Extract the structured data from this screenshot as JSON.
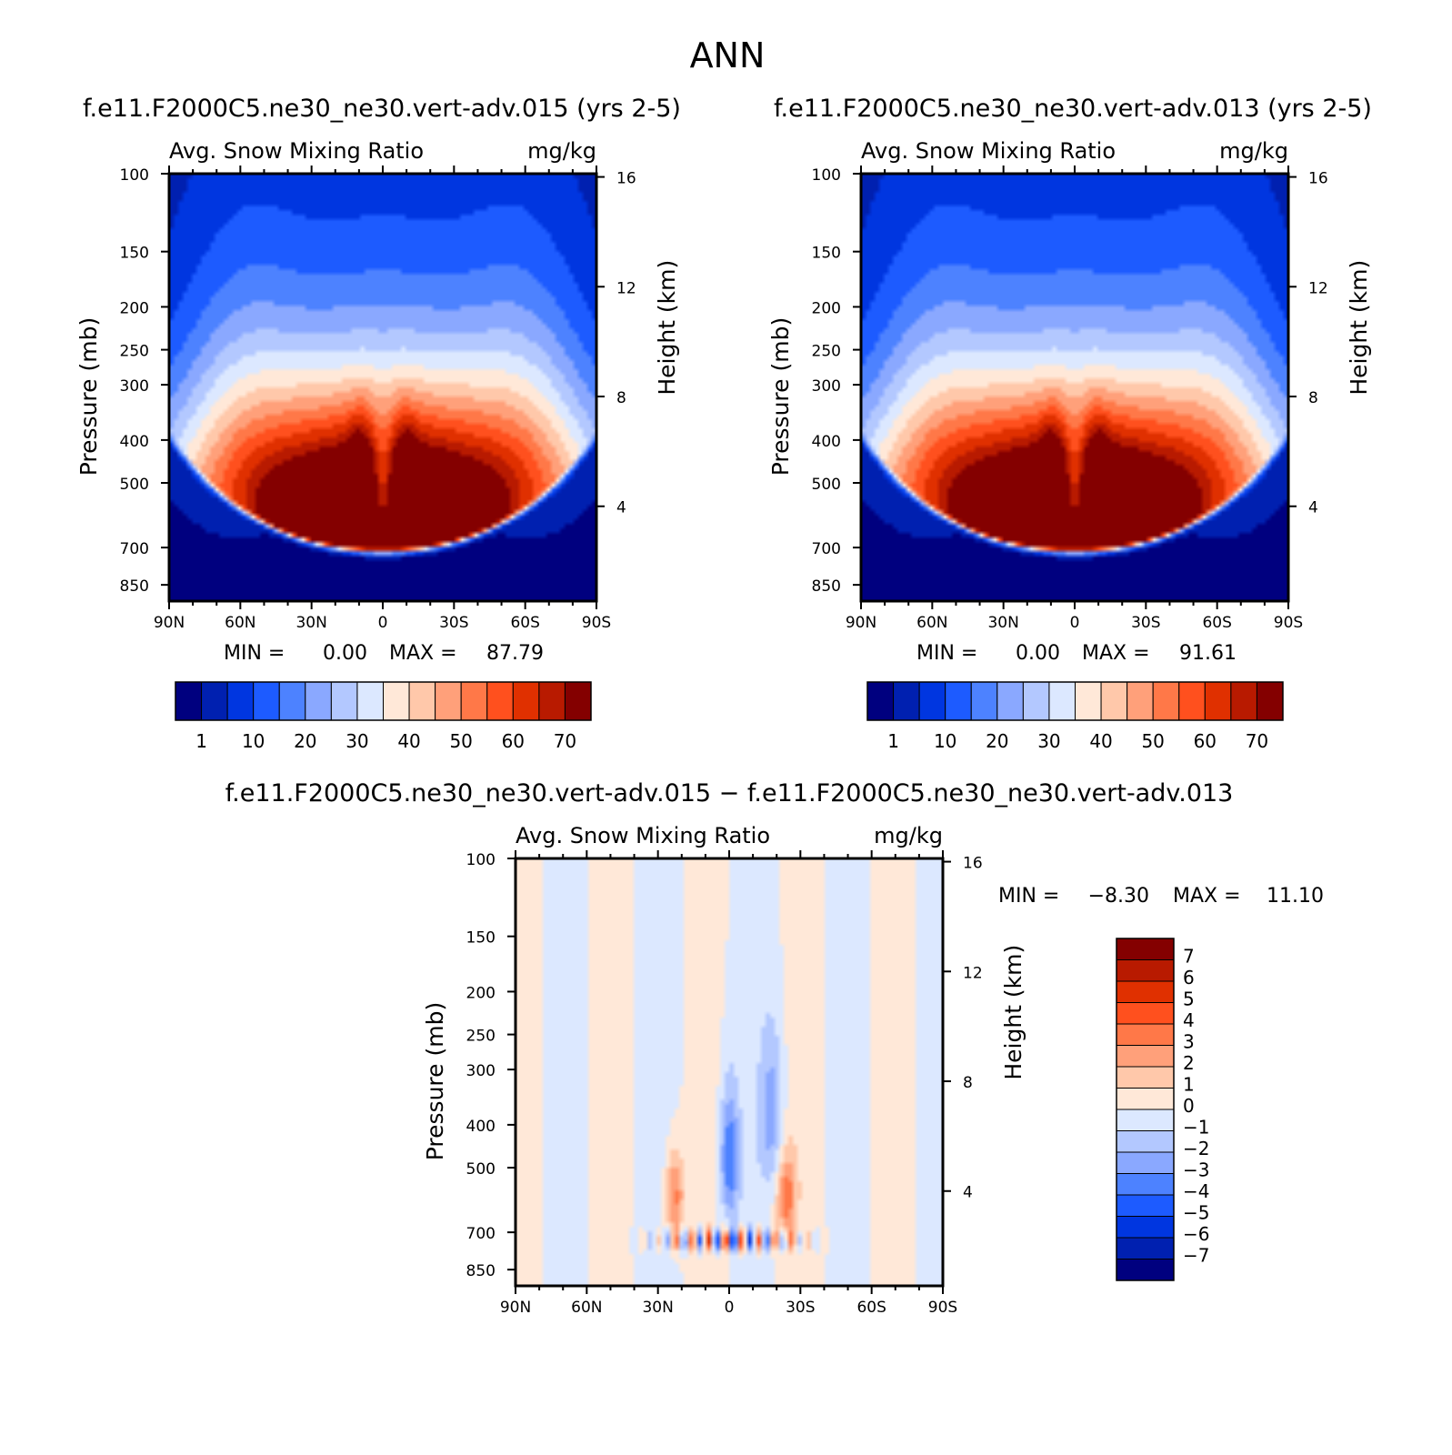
{
  "figure": {
    "title": "ANN"
  },
  "chart_data": [
    {
      "type": "contour",
      "title": "f.e11.F2000C5.ne30_ne30.vert-adv.015 (yrs 2-5)",
      "left_label": "Avg. Snow Mixing Ratio",
      "right_label": "mg/kg",
      "ylabel": "Pressure (mb)",
      "y2label": "Height (km)",
      "x_ticks": [
        "90N",
        "60N",
        "30N",
        "0",
        "30S",
        "60S",
        "90S"
      ],
      "y_ticks": [
        100,
        150,
        200,
        250,
        300,
        400,
        500,
        700,
        850
      ],
      "y2_ticks": [
        16,
        12,
        8,
        4
      ],
      "ylim": [
        100,
        925
      ],
      "stats": {
        "min_label": "MIN =",
        "min": "0.00",
        "max_label": "MAX =",
        "max": "87.79"
      },
      "colorbar": {
        "levels": [
          1,
          5,
          10,
          15,
          20,
          25,
          30,
          35,
          40,
          45,
          50,
          55,
          60,
          65,
          70
        ],
        "labels": [
          "1",
          "10",
          "20",
          "30",
          "40",
          "50",
          "60",
          "70"
        ],
        "colors": [
          "#00007f",
          "#0020b0",
          "#0036e0",
          "#1d5bff",
          "#4d82ff",
          "#8aa8ff",
          "#b3c8ff",
          "#dce8ff",
          "#ffe8d8",
          "#ffc8aa",
          "#ffa07a",
          "#ff7848",
          "#ff501e",
          "#e03000",
          "#b81a00",
          "#840000"
        ]
      }
    },
    {
      "type": "contour",
      "title": "f.e11.F2000C5.ne30_ne30.vert-adv.013 (yrs 2-5)",
      "left_label": "Avg. Snow Mixing Ratio",
      "right_label": "mg/kg",
      "ylabel": "Pressure (mb)",
      "y2label": "Height (km)",
      "x_ticks": [
        "90N",
        "60N",
        "30N",
        "0",
        "30S",
        "60S",
        "90S"
      ],
      "y_ticks": [
        100,
        150,
        200,
        250,
        300,
        400,
        500,
        700,
        850
      ],
      "y2_ticks": [
        16,
        12,
        8,
        4
      ],
      "ylim": [
        100,
        925
      ],
      "stats": {
        "min_label": "MIN =",
        "min": "0.00",
        "max_label": "MAX =",
        "max": "91.61"
      },
      "colorbar": {
        "levels": [
          1,
          5,
          10,
          15,
          20,
          25,
          30,
          35,
          40,
          45,
          50,
          55,
          60,
          65,
          70
        ],
        "labels": [
          "1",
          "10",
          "20",
          "30",
          "40",
          "50",
          "60",
          "70"
        ],
        "colors": [
          "#00007f",
          "#0020b0",
          "#0036e0",
          "#1d5bff",
          "#4d82ff",
          "#8aa8ff",
          "#b3c8ff",
          "#dce8ff",
          "#ffe8d8",
          "#ffc8aa",
          "#ffa07a",
          "#ff7848",
          "#ff501e",
          "#e03000",
          "#b81a00",
          "#840000"
        ]
      }
    },
    {
      "type": "contour",
      "title": "f.e11.F2000C5.ne30_ne30.vert-adv.015 − f.e11.F2000C5.ne30_ne30.vert-adv.013",
      "left_label": "Avg. Snow Mixing Ratio",
      "right_label": "mg/kg",
      "ylabel": "Pressure (mb)",
      "y2label": "Height (km)",
      "x_ticks": [
        "90N",
        "60N",
        "30N",
        "0",
        "30S",
        "60S",
        "90S"
      ],
      "y_ticks": [
        100,
        150,
        200,
        250,
        300,
        400,
        500,
        700,
        850
      ],
      "y2_ticks": [
        16,
        12,
        8,
        4
      ],
      "ylim": [
        100,
        925
      ],
      "stats": {
        "min_label": "MIN =",
        "min": "−8.30",
        "max_label": "MAX =",
        "max": "11.10"
      },
      "colorbar": {
        "levels": [
          7,
          6,
          5,
          4,
          3,
          2,
          1,
          0,
          -1,
          -2,
          -3,
          -4,
          -5,
          -6,
          -7
        ],
        "labels": [
          "7",
          "6",
          "5",
          "4",
          "3",
          "2",
          "1",
          "0",
          "−1",
          "−2",
          "−3",
          "−4",
          "−5",
          "−6",
          "−7"
        ],
        "colors": [
          "#840000",
          "#b81a00",
          "#e03000",
          "#ff501e",
          "#ff7848",
          "#ffa07a",
          "#ffc8aa",
          "#ffe8d8",
          "#dce8ff",
          "#b3c8ff",
          "#8aa8ff",
          "#4d82ff",
          "#1d5bff",
          "#0036e0",
          "#0020b0",
          "#00007f"
        ]
      }
    }
  ]
}
